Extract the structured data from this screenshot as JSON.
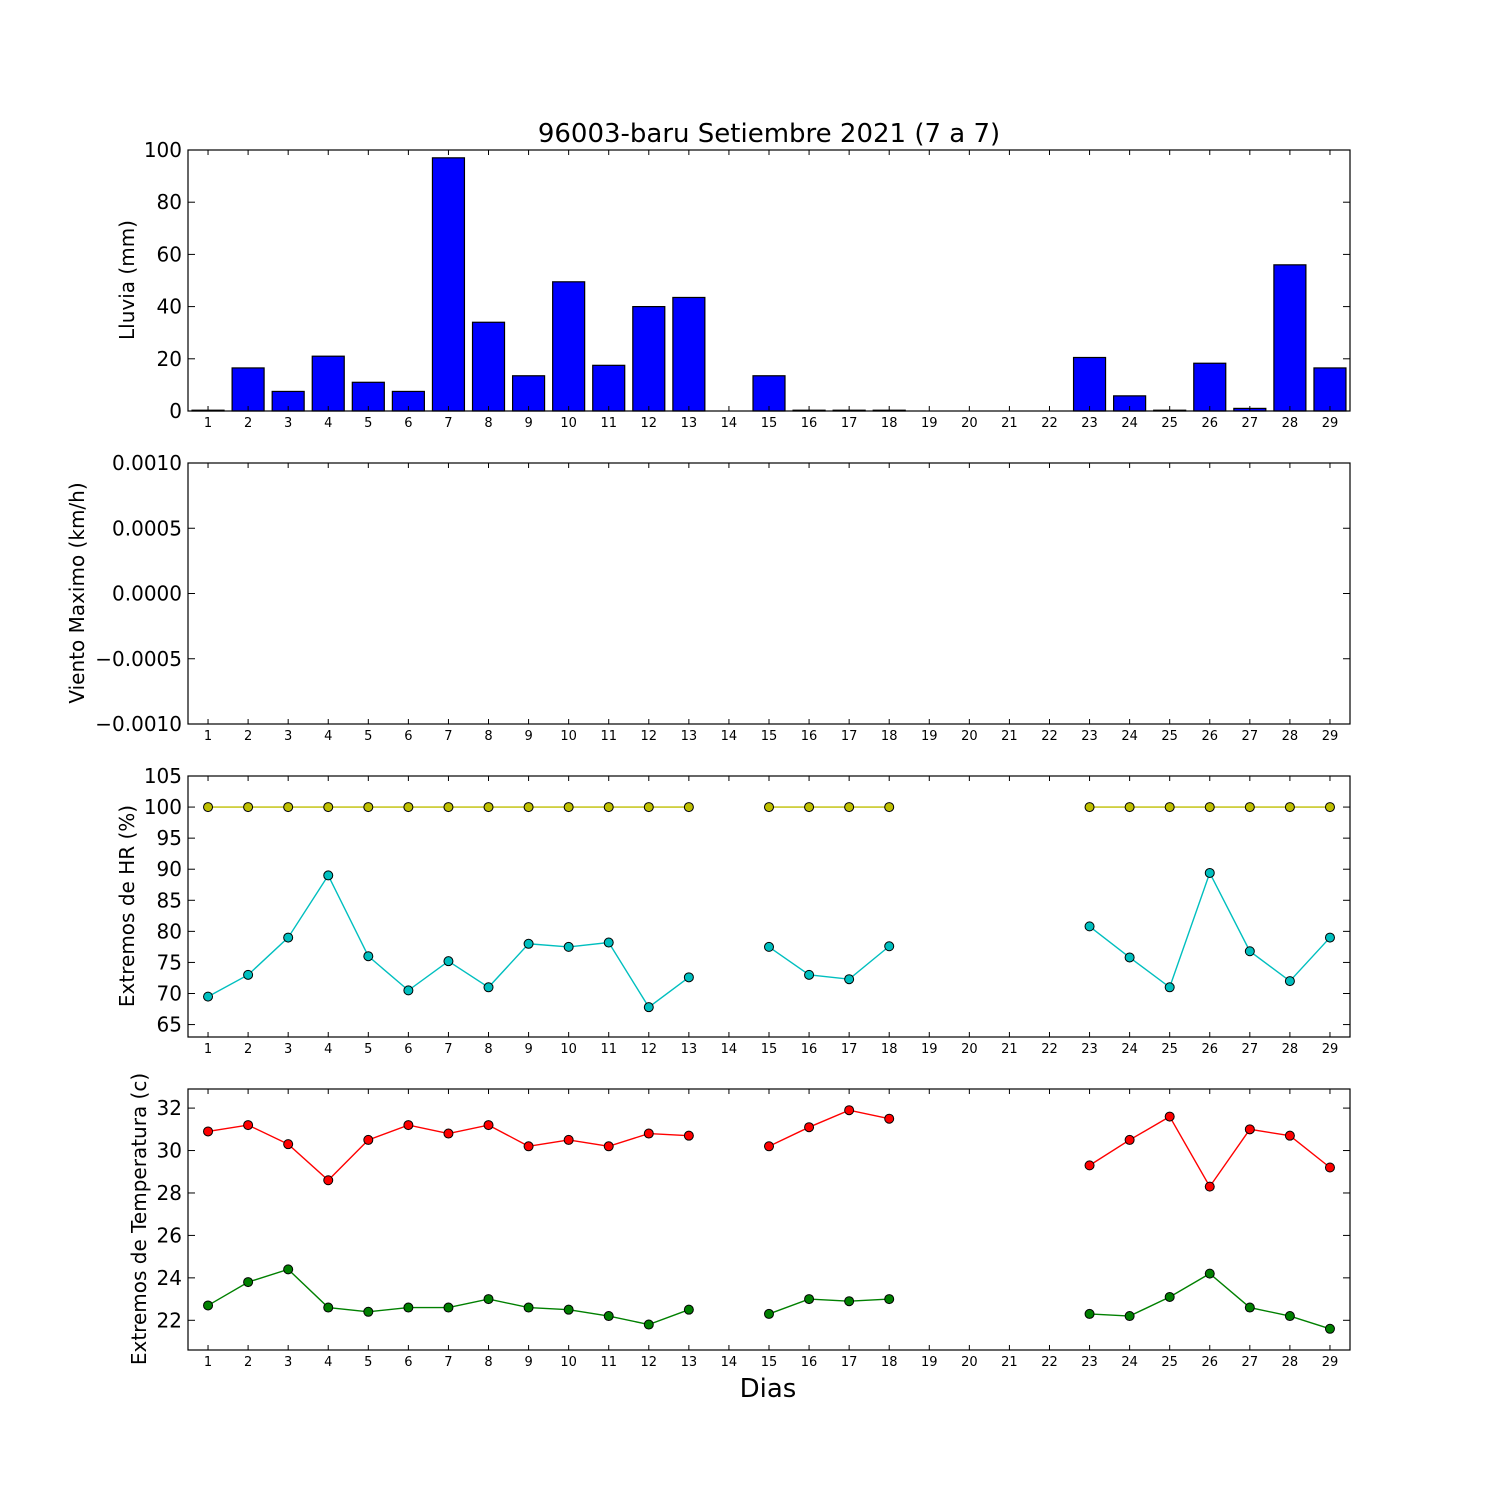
{
  "chart_data": [
    {
      "type": "bar",
      "title": "96003-baru Setiembre 2021  (7 a 7)",
      "ylabel": "Lluvia (mm)",
      "xlabel": "",
      "ylim": [
        0,
        100
      ],
      "yticks": [
        0,
        20,
        40,
        60,
        80,
        100
      ],
      "ytick_labels": [
        "0",
        "20",
        "40",
        "60",
        "80",
        "100"
      ],
      "categories": [
        "1",
        "2",
        "3",
        "4",
        "5",
        "6",
        "7",
        "8",
        "9",
        "10",
        "11",
        "12",
        "13",
        "14",
        "15",
        "16",
        "17",
        "18",
        "19",
        "20",
        "21",
        "22",
        "23",
        "24",
        "25",
        "26",
        "27",
        "28",
        "29"
      ],
      "series": [
        {
          "color": "#0000ff",
          "values": [
            0.3,
            16.5,
            7.5,
            21,
            11,
            7.5,
            97,
            34,
            13.5,
            49.5,
            17.5,
            40,
            43.5,
            null,
            13.5,
            0.3,
            0.3,
            0.3,
            0,
            0,
            0,
            0,
            20.5,
            5.8,
            0.3,
            18.3,
            1,
            56,
            16.5
          ]
        }
      ]
    },
    {
      "type": "line",
      "ylabel": "Viento Maximo (km/h)",
      "xlabel": "",
      "ylim": [
        -0.001,
        0.001
      ],
      "yticks": [
        -0.001,
        -0.0005,
        0,
        0.0005,
        0.001
      ],
      "ytick_labels": [
        "−0.0010",
        "−0.0005",
        "0.0000",
        "0.0005",
        "0.0010"
      ],
      "categories": [
        "1",
        "2",
        "3",
        "4",
        "5",
        "6",
        "7",
        "8",
        "9",
        "10",
        "11",
        "12",
        "13",
        "14",
        "15",
        "16",
        "17",
        "18",
        "19",
        "20",
        "21",
        "22",
        "23",
        "24",
        "25",
        "26",
        "27",
        "28",
        "29"
      ],
      "series": []
    },
    {
      "type": "line",
      "ylabel": "Extremos de HR (%)",
      "xlabel": "",
      "ylim": [
        63,
        105
      ],
      "yticks": [
        65,
        70,
        75,
        80,
        85,
        90,
        95,
        100,
        105
      ],
      "ytick_labels": [
        "65",
        "70",
        "75",
        "80",
        "85",
        "90",
        "95",
        "100",
        "105"
      ],
      "categories": [
        "1",
        "2",
        "3",
        "4",
        "5",
        "6",
        "7",
        "8",
        "9",
        "10",
        "11",
        "12",
        "13",
        "14",
        "15",
        "16",
        "17",
        "18",
        "19",
        "20",
        "21",
        "22",
        "23",
        "24",
        "25",
        "26",
        "27",
        "28",
        "29"
      ],
      "series": [
        {
          "color": "#bfbf00",
          "values": [
            100,
            100,
            100,
            100,
            100,
            100,
            100,
            100,
            100,
            100,
            100,
            100,
            100,
            null,
            100,
            100,
            100,
            100,
            null,
            null,
            null,
            null,
            100,
            100,
            100,
            100,
            100,
            100,
            100
          ]
        },
        {
          "color": "#00bfbf",
          "values": [
            69.5,
            73,
            79,
            89,
            76,
            70.5,
            75.2,
            71,
            78,
            77.5,
            78.2,
            67.8,
            72.6,
            null,
            77.5,
            73,
            72.3,
            77.6,
            null,
            null,
            null,
            null,
            80.8,
            75.8,
            71,
            89.4,
            76.8,
            72,
            79
          ]
        }
      ]
    },
    {
      "type": "line",
      "ylabel": "Extremos de Temperatura (c)",
      "xlabel": "Dias",
      "ylim": [
        20.6,
        32.9
      ],
      "yticks": [
        22,
        24,
        26,
        28,
        30,
        32
      ],
      "ytick_labels": [
        "22",
        "24",
        "26",
        "28",
        "30",
        "32"
      ],
      "categories": [
        "1",
        "2",
        "3",
        "4",
        "5",
        "6",
        "7",
        "8",
        "9",
        "10",
        "11",
        "12",
        "13",
        "14",
        "15",
        "16",
        "17",
        "18",
        "19",
        "20",
        "21",
        "22",
        "23",
        "24",
        "25",
        "26",
        "27",
        "28",
        "29"
      ],
      "series": [
        {
          "color": "#ff0000",
          "values": [
            30.9,
            31.2,
            30.3,
            28.6,
            30.5,
            31.2,
            30.8,
            31.2,
            30.2,
            30.5,
            30.2,
            30.8,
            30.7,
            null,
            30.2,
            31.1,
            31.9,
            31.5,
            null,
            null,
            null,
            null,
            29.3,
            30.5,
            31.6,
            28.3,
            31,
            30.7,
            29.2
          ]
        },
        {
          "color": "#008000",
          "values": [
            22.7,
            23.8,
            24.4,
            22.6,
            22.4,
            22.6,
            22.6,
            23,
            22.6,
            22.5,
            22.2,
            21.8,
            22.5,
            null,
            22.3,
            23,
            22.9,
            23,
            null,
            null,
            null,
            null,
            22.3,
            22.2,
            23.1,
            24.2,
            22.6,
            22.2,
            21.6
          ]
        }
      ]
    }
  ]
}
